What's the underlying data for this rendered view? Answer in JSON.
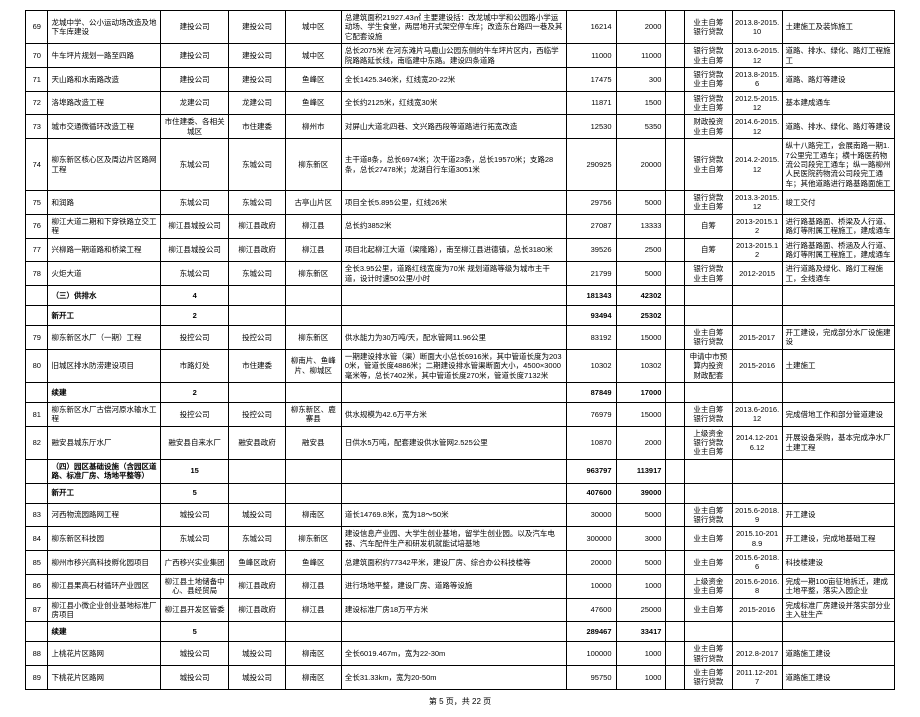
{
  "footer": "第 5 页，共 22 页",
  "rows": [
    {
      "id": "69",
      "name": "龙城中学、公小运动场改造及地下车库建设",
      "r1": "建投公司",
      "r2": "建投公司",
      "r3": "城中区",
      "desc": "总建筑面积21927.43㎡ 主要建设括：改龙城中学和公园路小学运动场、学生食堂，两层地开式架空停车库；改造东台路四一巷及其它配套设施",
      "v1": "16214",
      "v2": "2000",
      "v3": "",
      "fund": "业主自筹\n银行贷款",
      "date": "2013.8-2015.10",
      "note": "土建施工及装饰施工"
    },
    {
      "id": "70",
      "name": "牛车坪片规划一路至四路",
      "r1": "建投公司",
      "r2": "建投公司",
      "r3": "城中区",
      "desc": "总长2075米 在河东滩片马鹿山公园东侧的牛车坪片区内，西临学院路路延长线，南临建中东路。建设四条道路",
      "v1": "11000",
      "v2": "11000",
      "v3": "",
      "fund": "银行贷款\n业主自筹",
      "date": "2013.6-2015.12",
      "note": "道路、排水、绿化、路灯工程施工"
    },
    {
      "id": "71",
      "name": "天山路和水南路改造",
      "r1": "建投公司",
      "r2": "建投公司",
      "r3": "鱼峰区",
      "desc": "全长1425.346米，红线宽20-22米",
      "v1": "17475",
      "v2": "300",
      "v3": "",
      "fund": "银行贷款\n业主自筹",
      "date": "2013.8-2015.6",
      "note": "道路、路灯等建设"
    },
    {
      "id": "72",
      "name": "洛埠路改造工程",
      "r1": "龙建公司",
      "r2": "龙建公司",
      "r3": "鱼峰区",
      "desc": "全长约2125米，红线宽30米",
      "v1": "11871",
      "v2": "1500",
      "v3": "",
      "fund": "银行贷款\n业主自筹",
      "date": "2012.5-2015.12",
      "note": "基本建成通车"
    },
    {
      "id": "73",
      "name": "城市交通微循环改造工程",
      "r1": "市住建委、各相关城区",
      "r2": "市住建委",
      "r3": "柳州市",
      "desc": "对屏山大道北四巷、文兴路西段等道路进行拓宽改造",
      "v1": "12530",
      "v2": "5350",
      "v3": "",
      "fund": "财政投资\n业主自筹",
      "date": "2014.6-2015.12",
      "note": "道路、排水、绿化、路灯等建设"
    },
    {
      "id": "74",
      "name": "柳东新区核心区及周边片区路网工程",
      "r1": "东城公司",
      "r2": "东城公司",
      "r3": "柳东新区",
      "desc": "主干道8条，总长6974米；次干道23条，总长19570米；支路28条，总长27478米；龙湖自行车道3051米",
      "v1": "290925",
      "v2": "20000",
      "v3": "",
      "fund": "银行贷款\n业主自筹",
      "date": "2014.2-2015.12",
      "note": "纵十八路完工，会展南路一期1.7公里完工通车；横十路医药物流公司段完工通车；纵一路柳州人民医院药物流公司段完工通车；其他道路进行路基路面施工"
    },
    {
      "id": "75",
      "name": "和润路",
      "r1": "东城公司",
      "r2": "东城公司",
      "r3": "古亭山片区",
      "desc": "项目全长5.895公里，红线26米",
      "v1": "29756",
      "v2": "5000",
      "v3": "",
      "fund": "银行贷款\n业主自筹",
      "date": "2013.3-2015.12",
      "note": "竣工交付"
    },
    {
      "id": "76",
      "name": "柳江大道二期和下穿铁路立交工程",
      "r1": "柳江县城投公司",
      "r2": "柳江县政府",
      "r3": "柳江县",
      "desc": "总长约3852米",
      "v1": "27087",
      "v2": "13333",
      "v3": "",
      "fund": "自筹",
      "date": "2013-2015.12",
      "note": "进行路基路面、桥梁及人行道、路灯等附属工程施工，建成通车"
    },
    {
      "id": "77",
      "name": "兴柳路一期道路和桥梁工程",
      "r1": "柳江县城投公司",
      "r2": "柳江县政府",
      "r3": "柳江县",
      "desc": "项目北起柳江大道（梁隆路），南至柳江县进德镇，总长3180米",
      "v1": "39526",
      "v2": "2500",
      "v3": "",
      "fund": "自筹",
      "date": "2013-2015.12",
      "note": "进行路基路面、桥涵及人行道、路灯等附属工程施工，建成通车"
    },
    {
      "id": "78",
      "name": "火炬大道",
      "r1": "东城公司",
      "r2": "东城公司",
      "r3": "柳东新区",
      "desc": "全长3.95公里，道路红线宽度为70米 规划道路等级为城市主干道，设计时速50公里/小时",
      "v1": "21799",
      "v2": "5000",
      "v3": "",
      "fund": "银行贷款\n业主自筹",
      "date": "2012-2015",
      "note": "进行道路及绿化、路灯工程施工，全线通车"
    },
    {
      "section": true,
      "name": "（三）供排水",
      "r1": "4",
      "v1": "181343",
      "v2": "42302"
    },
    {
      "section": true,
      "name": "新开工",
      "r1": "2",
      "v1": "93494",
      "v2": "25302"
    },
    {
      "id": "79",
      "name": "柳东新区水厂（一期）工程",
      "r1": "投控公司",
      "r2": "投控公司",
      "r3": "柳东新区",
      "desc": "供水能力为30万吨/天，配水管网11.96公里",
      "v1": "83192",
      "v2": "15000",
      "v3": "",
      "fund": "业主自筹\n银行贷款",
      "date": "2015-2017",
      "note": "开工建设，完成部分水厂设施建设"
    },
    {
      "id": "80",
      "name": "旧城区排水防涝建设项目",
      "r1": "市路灯处",
      "r2": "市住建委",
      "r3": "柳南片、鱼峰片、柳城区",
      "desc": "一期建设排水管（渠）断面大小总长6916米，其中管道长度为2030米，管道长度4886米；二期建设排水管渠断面大小，4500×3000毫米等，总长7402米，其中管道长度270米，管道长度7132米",
      "v1": "10302",
      "v2": "10302",
      "v3": "",
      "fund": "申请中市预算内投资\n财政配套",
      "date": "2015-2016",
      "note": "土建施工"
    },
    {
      "section": true,
      "name": "续建",
      "r1": "2",
      "v1": "87849",
      "v2": "17000"
    },
    {
      "id": "81",
      "name": "柳东新区水厂古偿河原水输水工程",
      "r1": "投控公司",
      "r2": "投控公司",
      "r3": "柳东新区、鹿寨县",
      "desc": "供水规模为42.6万平方米",
      "v1": "76979",
      "v2": "15000",
      "v3": "",
      "fund": "业主自筹\n银行贷款",
      "date": "2013.6-2016.12",
      "note": "完成借地工作和部分管道建设"
    },
    {
      "id": "82",
      "name": "融安县城东厅水厂",
      "r1": "融安县自来水厂",
      "r2": "融安县政府",
      "r3": "融安县",
      "desc": "日供水5万吨，配套建设供水管网2.525公里",
      "v1": "10870",
      "v2": "2000",
      "v3": "",
      "fund": "上级资金\n银行贷款\n业主自筹",
      "date": "2014.12-2016.12",
      "note": "开展设备采购，基本完成净水厂土建工程"
    },
    {
      "section": true,
      "name": "（四）园区基础设施（含园区道路、标准厂房、场地平整等）",
      "r1": "15",
      "v1": "963797",
      "v2": "113917"
    },
    {
      "section": true,
      "name": "新开工",
      "r1": "5",
      "v1": "407600",
      "v2": "39000"
    },
    {
      "id": "83",
      "name": "河西物流园路网工程",
      "r1": "城投公司",
      "r2": "城投公司",
      "r3": "柳南区",
      "desc": "道长14769.8米，宽为18～50米",
      "v1": "30000",
      "v2": "5000",
      "v3": "",
      "fund": "业主自筹\n银行贷款",
      "date": "2015.6-2018.9",
      "note": "开工建设"
    },
    {
      "id": "84",
      "name": "柳东新区科技园",
      "r1": "东城公司",
      "r2": "东城公司",
      "r3": "柳东新区",
      "desc": "建设信息产业园、大学生创业基地，留学生创业园。以及汽车电器、汽车配件生产和研发机就能试培基地",
      "v1": "300000",
      "v2": "3000",
      "v3": "",
      "fund": "业主自筹",
      "date": "2015.10-2018.9",
      "note": "开工建设，完成地基础工程"
    },
    {
      "id": "85",
      "name": "柳州市移兴高科技孵化园项目",
      "r1": "广西移兴实业集团",
      "r2": "鱼峰区政府",
      "r3": "鱼峰区",
      "desc": "总建筑面积约77342平米，建设厂房、综合办公科技楼等",
      "v1": "20000",
      "v2": "5000",
      "v3": "",
      "fund": "业主自筹",
      "date": "2015.6-2018.6",
      "note": "科技楼建设"
    },
    {
      "id": "86",
      "name": "柳江县果高石材循环产业园区",
      "r1": "柳江县土地储备中心、县经贸局",
      "r2": "柳江县政府",
      "r3": "柳江县",
      "desc": "进行场地平整，建设厂房、道路等设施",
      "v1": "10000",
      "v2": "1000",
      "v3": "",
      "fund": "上级资金\n业主自筹",
      "date": "2015.6-2016.8",
      "note": "完成一期100亩征地拆迁，建成土地平整，落实入园企业"
    },
    {
      "id": "87",
      "name": "柳江县小微企业创业基地标准厂房项目",
      "r1": "柳江县开发区管委",
      "r2": "柳江县政府",
      "r3": "柳江县",
      "desc": "建设标准厂房18万平方米",
      "v1": "47600",
      "v2": "25000",
      "v3": "",
      "fund": "业主自筹",
      "date": "2015-2016",
      "note": "完成标准厂房建设并落实部分业主入驻生产"
    },
    {
      "section": true,
      "name": "续建",
      "r1": "5",
      "v1": "289467",
      "v2": "33417"
    },
    {
      "id": "88",
      "name": "上桃花片区路网",
      "r1": "城投公司",
      "r2": "城投公司",
      "r3": "柳南区",
      "desc": "全长6019.467m，宽为22-30m",
      "v1": "100000",
      "v2": "1000",
      "v3": "",
      "fund": "业主自筹\n银行贷款",
      "date": "2012.8-2017",
      "note": "道路施工建设"
    },
    {
      "id": "89",
      "name": "下桃花片区路网",
      "r1": "城投公司",
      "r2": "城投公司",
      "r3": "柳南区",
      "desc": "全长31.33km，宽为20-50m",
      "v1": "95750",
      "v2": "1000",
      "v3": "",
      "fund": "业主自筹\n银行贷款",
      "date": "2011.12-2017",
      "note": "道路施工建设"
    }
  ]
}
